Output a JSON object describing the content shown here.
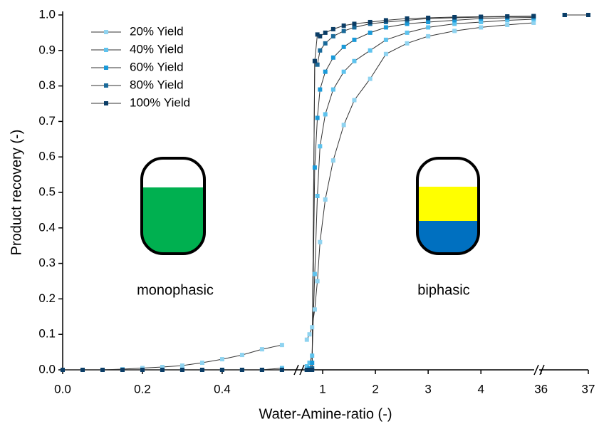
{
  "chart_data": {
    "type": "line",
    "x_label": "Water-Amine-ratio (-)",
    "y_label": "Product recovery (-)",
    "annotations": [
      "monophasic",
      "biphasic"
    ],
    "legend": "top-left",
    "xsegments": [
      [
        0,
        0.593
      ],
      [
        0.554,
        5.01
      ],
      [
        35.96,
        37
      ]
    ],
    "xticks": [
      {
        "value": 0,
        "label": "0.0"
      },
      0.2,
      0.4,
      1,
      2,
      3,
      4,
      36,
      37
    ],
    "ylim": [
      0,
      1
    ],
    "yticks": [
      {
        "value": 0,
        "label": "0.0"
      },
      0.1,
      0.2,
      0.3,
      0.4,
      0.5,
      0.6,
      0.7,
      0.8,
      0.9,
      {
        "value": 1,
        "label": "1.0"
      }
    ],
    "x": [
      0,
      0.05,
      0.1,
      0.15,
      0.2,
      0.25,
      0.3,
      0.35,
      0.4,
      0.45,
      0.5,
      0.55,
      0.7,
      0.75,
      0.8,
      0.85,
      0.9,
      0.95,
      1.05,
      1.2,
      1.4,
      1.6,
      1.9,
      2.2,
      2.6,
      3,
      3.5,
      4,
      4.5,
      5,
      36.5,
      37
    ],
    "series": [
      {
        "name": "20% Yield",
        "color": "#8fd3f0",
        "values": [
          0,
          0,
          0,
          0.002,
          0.005,
          0.008,
          0.012,
          0.02,
          0.03,
          0.042,
          0.058,
          0.07,
          0.085,
          0.1,
          0.12,
          0.17,
          0.25,
          0.36,
          0.48,
          0.59,
          0.69,
          0.76,
          0.82,
          0.89,
          0.92,
          0.94,
          0.955,
          0.965,
          0.972,
          0.978,
          1,
          1
        ]
      },
      {
        "name": "40% Yield",
        "color": "#5ec3ee",
        "values": [
          0,
          0,
          0,
          0,
          0,
          0,
          0,
          0,
          0,
          0,
          0,
          0.005,
          0.01,
          0.02,
          0.04,
          0.27,
          0.49,
          0.63,
          0.72,
          0.79,
          0.84,
          0.87,
          0.9,
          0.93,
          0.95,
          0.965,
          0.975,
          0.98,
          0.985,
          0.988,
          1,
          1
        ]
      },
      {
        "name": "60% Yield",
        "color": "#1a9ad9",
        "values": [
          0,
          0,
          0,
          0,
          0,
          0,
          0,
          0,
          0,
          0,
          0,
          0,
          0,
          0.005,
          0.02,
          0.57,
          0.71,
          0.79,
          0.84,
          0.88,
          0.91,
          0.93,
          0.95,
          0.965,
          0.975,
          0.98,
          0.985,
          0.99,
          0.992,
          0.993,
          1,
          1
        ]
      },
      {
        "name": "80% Yield",
        "color": "#1a6a9a",
        "values": [
          0,
          0,
          0,
          0,
          0,
          0,
          0,
          0,
          0,
          0,
          0,
          0,
          0,
          0,
          0.005,
          0.87,
          0.86,
          0.9,
          0.92,
          0.94,
          0.955,
          0.965,
          0.975,
          0.98,
          0.985,
          0.99,
          0.992,
          0.994,
          0.995,
          0.996,
          1,
          1
        ]
      },
      {
        "name": "100% Yield",
        "color": "#0b3d66",
        "values": [
          0,
          0,
          0,
          0,
          0,
          0,
          0,
          0,
          0,
          0,
          0,
          0,
          0,
          0,
          0,
          0.87,
          0.945,
          0.94,
          0.95,
          0.96,
          0.97,
          0.975,
          0.98,
          0.985,
          0.99,
          0.992,
          0.994,
          0.995,
          0.996,
          0.997,
          1,
          1
        ]
      }
    ]
  }
}
